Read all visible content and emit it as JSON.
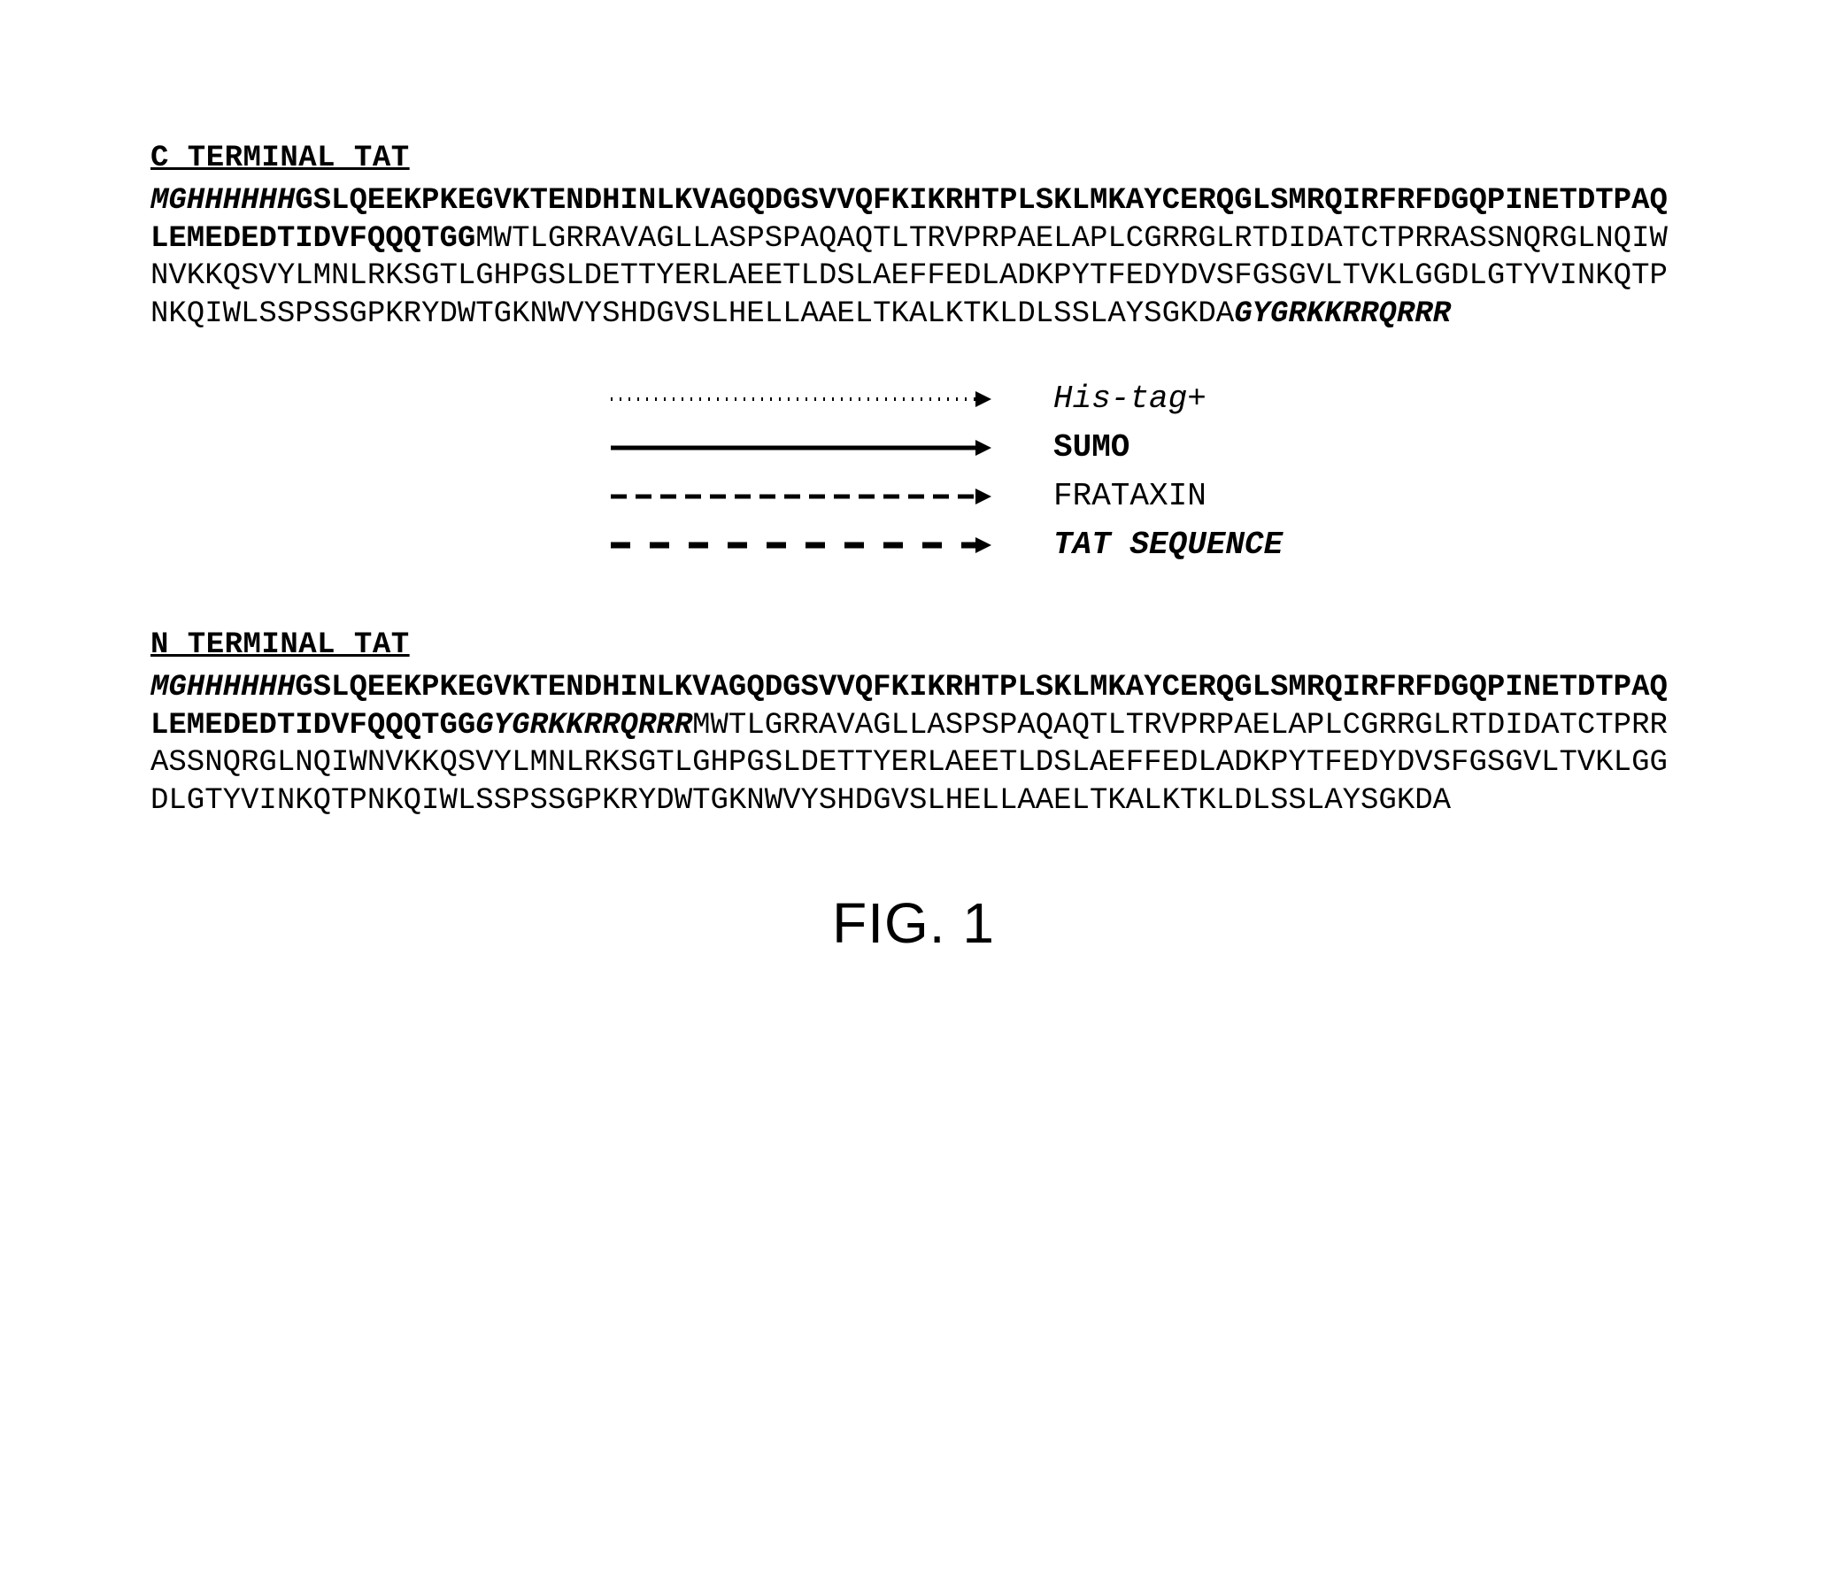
{
  "figure_caption": "FIG. 1",
  "colors": {
    "background": "#ffffff",
    "ink": "#000000"
  },
  "typography": {
    "sequence_font": "Courier New",
    "sequence_fontsize_pt": 26,
    "caption_font": "Arial",
    "caption_fontsize_pt": 48
  },
  "legend": {
    "items": [
      {
        "key": "his",
        "label": "His-tag+",
        "dash": "2,8",
        "width": 4,
        "style_class": "his"
      },
      {
        "key": "sumo",
        "label": "SUMO",
        "dash": "none",
        "width": 5,
        "style_class": "sumo"
      },
      {
        "key": "frataxin",
        "label": "FRATAXIN",
        "dash": "18,10",
        "width": 5,
        "style_class": "frataxin"
      },
      {
        "key": "tat",
        "label": "TAT SEQUENCE",
        "dash": "22,22",
        "width": 7,
        "style_class": "tat"
      }
    ]
  },
  "sequences": {
    "c_terminal": {
      "title": "C TERMINAL TAT",
      "segments": [
        {
          "text": "MGHHHHHH",
          "class": "his"
        },
        {
          "text": "GSLQEEKPKEGVKTENDHINLKVAGQDGSVVQFKIKRHTPLSKLMKAYCERQGLSMRQIRFRFDGQPINETDTPAQLEMEDEDTIDVFQQQTGG",
          "class": "sumo"
        },
        {
          "text": "MWTLGRRAVAGLLASPSPAQAQTLTRVPRPAELAPLCGRRGLRTDIDATCTPRRASSNQRGLNQIWNVKKQSVYLMNLRKSGTLGHPGSLDETTYERLAEETLDSLAEFFEDLADKPYTFEDYDVSFGSGVLTVKLGGDLGTYVINKQTPNKQIWLSSPSSGPKRYDWTGKNWVYSHDGVSLHELLAAELTKALKTKLDLSSLAYSGKDA",
          "class": "frataxin"
        },
        {
          "text": "GYGRKKRRQRRR",
          "class": "tat"
        }
      ]
    },
    "n_terminal": {
      "title": "N TERMINAL TAT",
      "segments": [
        {
          "text": "MGHHHHHH",
          "class": "his"
        },
        {
          "text": "GSLQEEKPKEGVKTENDHINLKVAGQDGSVVQFKIKRHTPLSKLMKAYCERQGLSMRQIRFRFDGQPINETDTPAQLEMEDEDTIDVFQQQTGG",
          "class": "sumo"
        },
        {
          "text": "GYGRKKRRQRRR",
          "class": "tat"
        },
        {
          "text": "MWTLGRRAVAGLLASPSPAQAQTLTRVPRPAELAPLCGRRGLRTDIDATCTPRRASSNQRGLNQIWNVKKQSVYLMNLRKSGTLGHPGSLDETTYERLAEETLDSLAEFFEDLADKPYTFEDYDVSFGSGVLTVKLGGDLGTYVINKQTPNKQIWLSSPSSGPKRYDWTGKNWVYSHDGVSLHELLAAELTKALKTKLDLSSLAYSGKDA",
          "class": "frataxin"
        }
      ]
    }
  }
}
